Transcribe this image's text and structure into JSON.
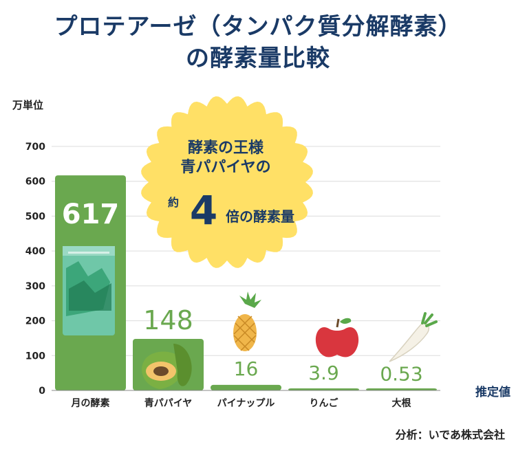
{
  "title": {
    "line1": "プロテアーゼ（タンパク質分解酵素）",
    "line2": "の酵素量比較"
  },
  "callout": {
    "line1": "酵素の王様",
    "line2": "青パパイヤの",
    "prefix": "約",
    "big": "4",
    "suffix": "倍の酵素量"
  },
  "credit": "分析：いであ株式会社",
  "colors": {
    "bar": "#6aa84f",
    "value_label": "#6aa84f",
    "title": "#1a3a66",
    "grid": "#dcdcdc",
    "callout": "#ffe066"
  },
  "chart_data": {
    "type": "bar",
    "ylabel": "万単位",
    "xlabel": "推定値",
    "ylim": [
      0,
      700
    ],
    "yticks": [
      0,
      100,
      200,
      300,
      400,
      500,
      600,
      700
    ],
    "categories": [
      "月の酵素",
      "青パパイヤ",
      "パイナップル",
      "りんご",
      "大根"
    ],
    "values": [
      617,
      148,
      16,
      3.9,
      0.53
    ],
    "value_labels": [
      "617",
      "148",
      "16",
      "3.9",
      "0.53"
    ],
    "grid": true
  }
}
